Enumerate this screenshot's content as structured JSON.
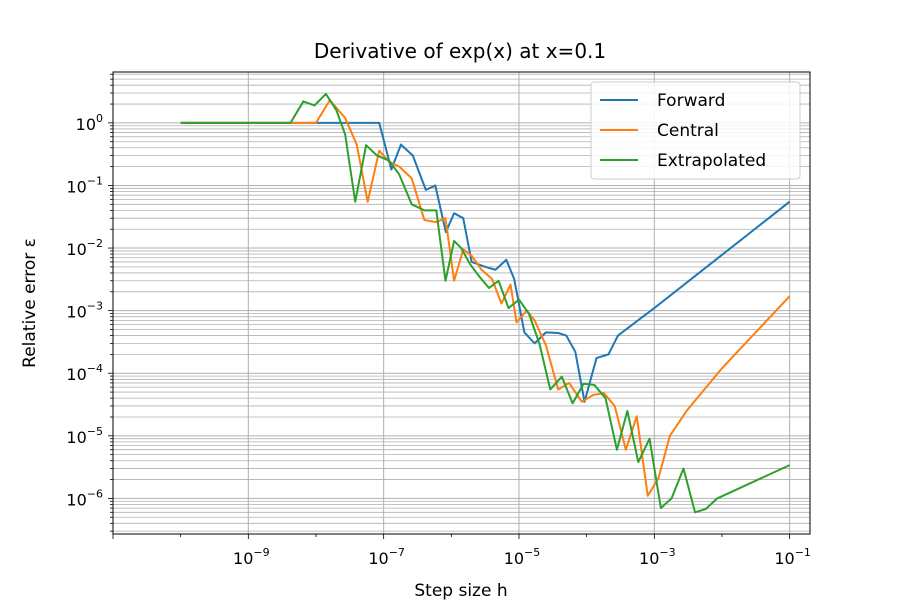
{
  "chart_data": {
    "type": "line",
    "title": "Derivative of exp(x) at x=0.1",
    "xlabel": "Step size h",
    "ylabel": "Relative error ε",
    "xscale": "log",
    "yscale": "log",
    "xlim": [
      1e-11,
      0.2
    ],
    "ylim": [
      2.7e-07,
      6.5
    ],
    "grid": true,
    "legend": "top-right",
    "x_tick_labels": [
      {
        "base": "10",
        "exp": "−9",
        "value": 1e-09
      },
      {
        "base": "10",
        "exp": "−7",
        "value": 1e-07
      },
      {
        "base": "10",
        "exp": "−5",
        "value": 1e-05
      },
      {
        "base": "10",
        "exp": "−3",
        "value": 0.001
      },
      {
        "base": "10",
        "exp": "−1",
        "value": 0.1
      }
    ],
    "y_tick_labels": [
      {
        "base": "10",
        "exp": "0",
        "value": 1
      },
      {
        "base": "10",
        "exp": "−1",
        "value": 0.1
      },
      {
        "base": "10",
        "exp": "−2",
        "value": 0.01
      },
      {
        "base": "10",
        "exp": "−3",
        "value": 0.001
      },
      {
        "base": "10",
        "exp": "−4",
        "value": 0.0001
      },
      {
        "base": "10",
        "exp": "−5",
        "value": 1e-05
      },
      {
        "base": "10",
        "exp": "−6",
        "value": 1e-06
      }
    ],
    "series": [
      {
        "name": "Forward",
        "color": "#1f77b4",
        "points": [
          [
            1e-10,
            1
          ],
          [
            4e-09,
            1
          ],
          [
            2.2e-08,
            1
          ],
          [
            8.6e-08,
            1
          ],
          [
            1.3e-07,
            0.18
          ],
          [
            1.8e-07,
            0.45
          ],
          [
            2.7e-07,
            0.3
          ],
          [
            4.2e-07,
            0.085
          ],
          [
            5.8e-07,
            0.1
          ],
          [
            8.3e-07,
            0.018
          ],
          [
            1.1e-06,
            0.036
          ],
          [
            1.5e-06,
            0.03
          ],
          [
            2e-06,
            0.006
          ],
          [
            3.2e-06,
            0.005
          ],
          [
            4.5e-06,
            0.0045
          ],
          [
            6.5e-06,
            0.0065
          ],
          [
            8.5e-06,
            0.0032
          ],
          [
            1.2e-05,
            0.00045
          ],
          [
            1.7e-05,
            0.0003
          ],
          [
            2.5e-05,
            0.00045
          ],
          [
            3.8e-05,
            0.00044
          ],
          [
            5e-05,
            0.0004
          ],
          [
            6.8e-05,
            0.00022
          ],
          [
            9.3e-05,
            3.5e-05
          ],
          [
            0.00014,
            0.000175
          ],
          [
            0.00021,
            0.0002
          ],
          [
            0.00029,
            0.0004
          ],
          [
            0.001,
            0.0011
          ],
          [
            0.1,
            0.055
          ]
        ]
      },
      {
        "name": "Central",
        "color": "#ff7f0e",
        "points": [
          [
            1e-10,
            1
          ],
          [
            4e-09,
            1
          ],
          [
            1e-08,
            1
          ],
          [
            1.6e-08,
            2.3
          ],
          [
            2.7e-08,
            1.2
          ],
          [
            4e-08,
            0.45
          ],
          [
            5.8e-08,
            0.055
          ],
          [
            8.6e-08,
            0.36
          ],
          [
            1.2e-07,
            0.24
          ],
          [
            1.7e-07,
            0.2
          ],
          [
            2.6e-07,
            0.13
          ],
          [
            4e-07,
            0.028
          ],
          [
            6e-07,
            0.026
          ],
          [
            8.2e-07,
            0.03
          ],
          [
            1.1e-06,
            0.003
          ],
          [
            1.5e-06,
            0.0095
          ],
          [
            2e-06,
            0.0075
          ],
          [
            2.8e-06,
            0.0045
          ],
          [
            4e-06,
            0.0032
          ],
          [
            5.5e-06,
            0.0013
          ],
          [
            7.5e-06,
            0.0026
          ],
          [
            9.2e-06,
            0.00065
          ],
          [
            1.3e-05,
            0.001
          ],
          [
            1.7e-05,
            0.0007
          ],
          [
            2.5e-05,
            0.00028
          ],
          [
            3.8e-05,
            5.5e-05
          ],
          [
            5.5e-05,
            7e-05
          ],
          [
            8.5e-05,
            3.5e-05
          ],
          [
            0.000125,
            4.5e-05
          ],
          [
            0.00018,
            4.8e-05
          ],
          [
            0.00026,
            3e-05
          ],
          [
            0.00038,
            6e-06
          ],
          [
            0.00055,
            2.05e-05
          ],
          [
            0.0008,
            1.1e-06
          ],
          [
            0.00115,
            2.1e-06
          ],
          [
            0.0017,
            1e-05
          ],
          [
            0.003,
            2.5e-05
          ],
          [
            0.01,
            0.00012
          ],
          [
            0.1,
            0.0017
          ]
        ]
      },
      {
        "name": "Extrapolated",
        "color": "#2ca02c",
        "points": [
          [
            1e-10,
            1
          ],
          [
            4.2e-09,
            1
          ],
          [
            6.5e-09,
            2.2
          ],
          [
            9.5e-09,
            1.9
          ],
          [
            1.4e-08,
            2.9
          ],
          [
            2e-08,
            1.6
          ],
          [
            2.7e-08,
            0.65
          ],
          [
            3.8e-08,
            0.055
          ],
          [
            5.5e-08,
            0.44
          ],
          [
            8e-08,
            0.3
          ],
          [
            1.2e-07,
            0.25
          ],
          [
            1.7e-07,
            0.15
          ],
          [
            2.6e-07,
            0.05
          ],
          [
            4e-07,
            0.04
          ],
          [
            6e-07,
            0.04
          ],
          [
            8.2e-07,
            0.003
          ],
          [
            1.1e-06,
            0.013
          ],
          [
            1.4e-06,
            0.01
          ],
          [
            1.9e-06,
            0.0055
          ],
          [
            2.6e-06,
            0.0035
          ],
          [
            3.6e-06,
            0.0023
          ],
          [
            5e-06,
            0.003
          ],
          [
            7e-06,
            0.0011
          ],
          [
            1e-05,
            0.0015
          ],
          [
            1.4e-05,
            0.0009
          ],
          [
            2e-05,
            0.0003
          ],
          [
            2.9e-05,
            5.5e-05
          ],
          [
            4.3e-05,
            8.8e-05
          ],
          [
            6.2e-05,
            3.3e-05
          ],
          [
            9e-05,
            6.8e-05
          ],
          [
            0.00013,
            6.5e-05
          ],
          [
            0.00019,
            4e-05
          ],
          [
            0.00028,
            6e-06
          ],
          [
            0.0004,
            2.5e-05
          ],
          [
            0.00058,
            3.8e-06
          ],
          [
            0.00085,
            9e-06
          ],
          [
            0.00125,
            7e-07
          ],
          [
            0.0018,
            1e-06
          ],
          [
            0.0027,
            3e-06
          ],
          [
            0.004,
            6e-07
          ],
          [
            0.0058,
            6.8e-07
          ],
          [
            0.0085,
            1e-06
          ],
          [
            0.1,
            3.4e-06
          ]
        ]
      }
    ]
  }
}
